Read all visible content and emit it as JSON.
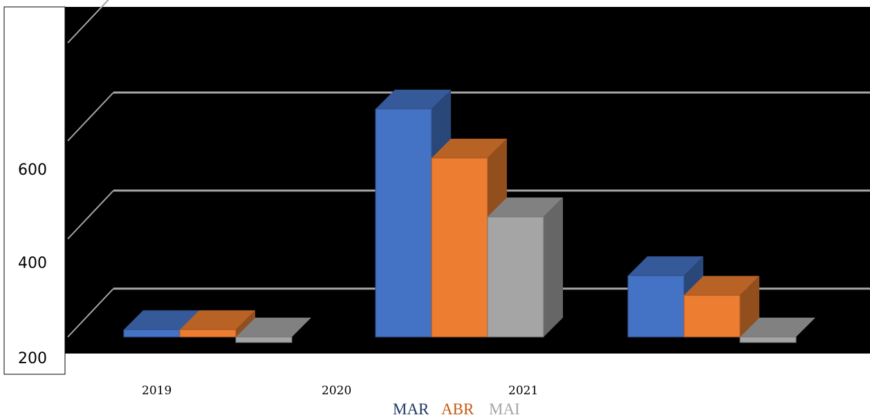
{
  "chart_data": {
    "type": "bar",
    "title": "",
    "xlabel": "",
    "ylabel": "",
    "categories": [
      "2019",
      "2020",
      "2021"
    ],
    "series": [
      {
        "name": "MAR",
        "color": "#4472c4",
        "values": [
          215,
          665,
          325
        ]
      },
      {
        "name": "ABR",
        "color": "#ed7d31",
        "values": [
          215,
          565,
          285
        ]
      },
      {
        "name": "MAI",
        "color": "#a5a5a5",
        "values": [
          200,
          445,
          200
        ]
      }
    ],
    "y_ticks": [
      "200",
      "400",
      "600"
    ],
    "ylim": [
      200,
      800
    ],
    "grid": true,
    "legend_position": "bottom",
    "colors": {
      "plot_background": "#000000",
      "gridline": "#a6a6a6",
      "legend_MAR": "#1f3864",
      "legend_ABR": "#c55a11",
      "legend_MAI": "#a5a5a5"
    }
  }
}
